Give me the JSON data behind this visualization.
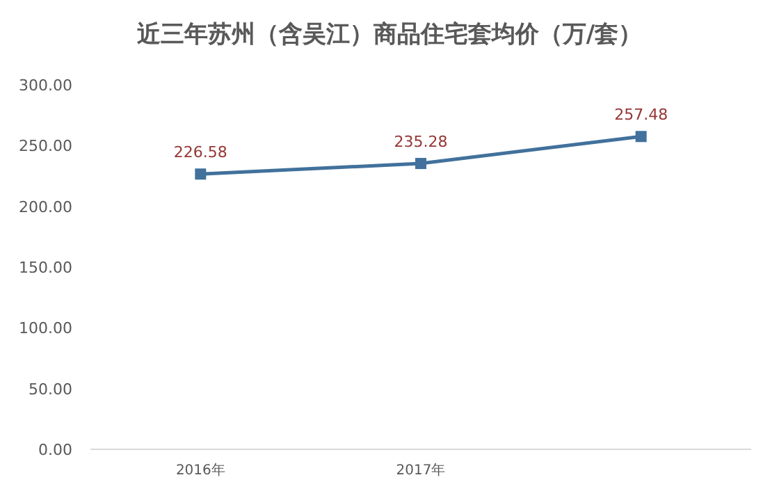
{
  "chart_data": {
    "type": "line",
    "title": "近三年苏州（含吴江）商品住宅套均价（万/套）",
    "categories": [
      "2016年",
      "2017年",
      null
    ],
    "series": [
      {
        "color": "#41719c",
        "values": [
          226.58,
          235.28,
          257.48
        ]
      }
    ],
    "ylim": [
      0,
      300
    ],
    "yticks": [
      {
        "value": 0,
        "label": "0.00"
      },
      {
        "value": 50,
        "label": "50.00"
      },
      {
        "value": 100,
        "label": "100.00"
      },
      {
        "value": 150,
        "label": "150.00"
      },
      {
        "value": 200,
        "label": "200.00"
      },
      {
        "value": 250,
        "label": "250.00"
      },
      {
        "value": 300,
        "label": "300.00"
      }
    ],
    "marker": "square",
    "data_labels": true,
    "grid": false
  }
}
